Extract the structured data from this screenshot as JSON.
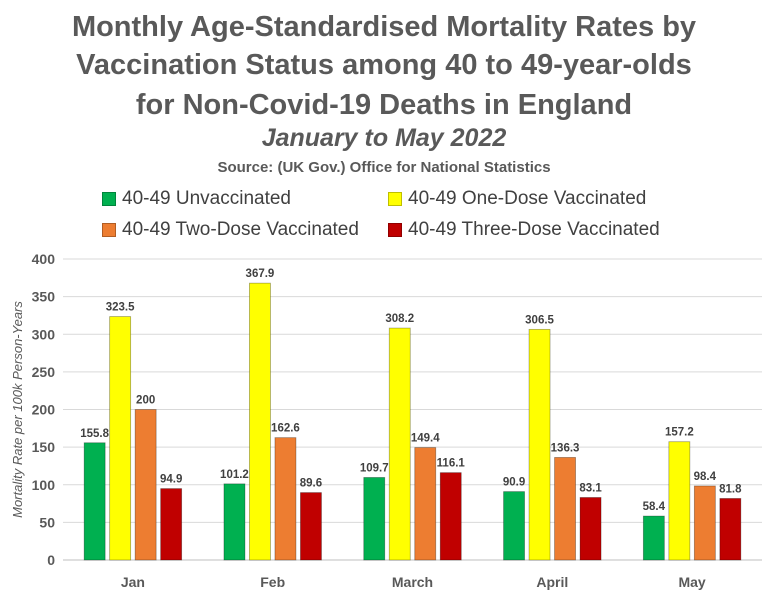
{
  "title_lines": [
    "Monthly Age-Standardised Mortality Rates by",
    "Vaccination Status among 40 to 49-year-olds",
    "for Non-Covid-19 Deaths in England"
  ],
  "subtitle": "January to May 2022",
  "source": "Source: (UK Gov.) Office for National Statistics",
  "chart_data": {
    "type": "bar",
    "categories": [
      "Jan",
      "Feb",
      "March",
      "April",
      "May"
    ],
    "series": [
      {
        "name": "40-49 Unvaccinated",
        "color": "#00B050",
        "values": [
          155.8,
          101.2,
          109.7,
          90.9,
          58.4
        ]
      },
      {
        "name": "40-49 One-Dose Vaccinated",
        "color": "#FFFF00",
        "values": [
          323.5,
          367.9,
          308.2,
          306.5,
          157.2
        ]
      },
      {
        "name": "40-49 Two-Dose Vaccinated",
        "color": "#ED7D31",
        "values": [
          200,
          162.6,
          149.4,
          136.3,
          98.4
        ]
      },
      {
        "name": "40-49 Three-Dose Vaccinated",
        "color": "#C00000",
        "values": [
          94.9,
          89.6,
          116.1,
          83.1,
          81.8
        ]
      }
    ],
    "ylabel": "Mortality Rate per 100k Person-Years",
    "ylim": [
      0,
      400
    ],
    "yticks": [
      0,
      50,
      100,
      150,
      200,
      250,
      300,
      350,
      400
    ],
    "grid": true,
    "legend_position": "top"
  }
}
